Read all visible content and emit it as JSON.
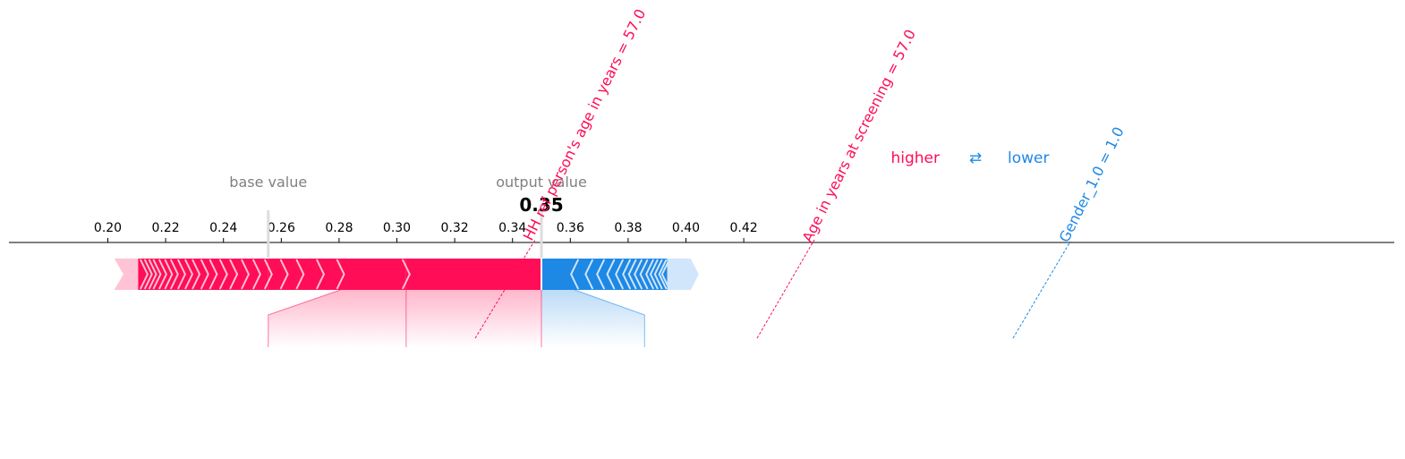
{
  "chart_data": {
    "type": "force",
    "base_value": 0.2555,
    "output_value": 0.35,
    "output_value_label": "0.35",
    "base_value_label": "base value",
    "output_label": "output value",
    "xlim": [
      0.183,
      0.423
    ],
    "ticks": [
      "0.20",
      "0.22",
      "0.24",
      "0.26",
      "0.28",
      "0.30",
      "0.32",
      "0.34",
      "0.36",
      "0.38",
      "0.40",
      "0.42"
    ],
    "legend": {
      "higher": "higher",
      "lower": "lower",
      "arrow": "⇄"
    },
    "colors": {
      "higher": "#ff0d57",
      "lower": "#1e88e5",
      "higher_light": "#ffc3d5",
      "lower_light": "#d1e6fa",
      "grey": "#808080"
    },
    "bar_range": [
      0.2035,
      0.4035
    ],
    "labeled_features": [
      {
        "label": "HH ref person's age in years = 57.0",
        "effect": "higher",
        "start": 0.2555,
        "end": 0.3032
      },
      {
        "label": "Age in years at screening = 57.0",
        "effect": "higher",
        "start": 0.3032,
        "end": 0.35
      },
      {
        "label": "Gender_1.0 = 1.0",
        "effect": "lower",
        "start": 0.35,
        "end": 0.3857
      }
    ]
  }
}
